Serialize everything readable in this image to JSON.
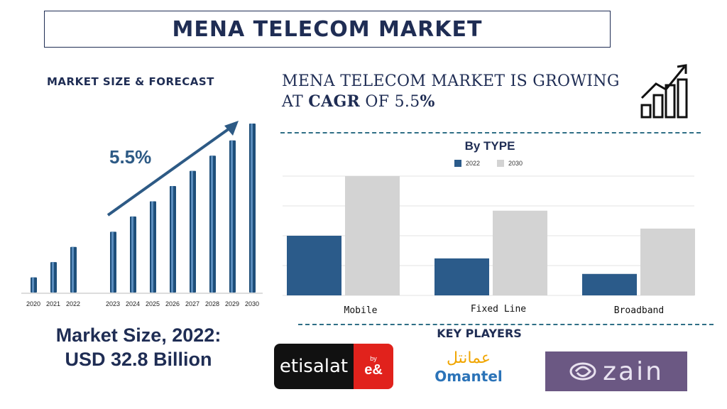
{
  "title": "MENA TELECOM MARKET",
  "forecast_heading": "MARKET SIZE & FORECAST",
  "growth": {
    "prefix": "MENA TELECOM MARKET IS GROWING AT",
    "cagr_word": "CAGR",
    "of_word": "OF",
    "rate": "5.5",
    "pct": "%"
  },
  "forecast_cagr_label": "5.5%",
  "market_size": {
    "line1": "Market Size, 2022:",
    "line2": "USD 32.8 Billion"
  },
  "key_players_heading": "KEY PLAYERS",
  "logos": {
    "etisalat": "etisalat",
    "etisalat_by": "by",
    "etisalat_mark": "e&",
    "omantel_arabic": "عمانتل",
    "omantel": "Omantel",
    "zain": "zain"
  },
  "colors": {
    "navy": "#1f2d54",
    "bar_2022": "#2b5b8a",
    "bar_2030": "#d3d3d3",
    "dash": "#2f6f86",
    "zain_bg": "#6b5883",
    "etisalat_red": "#e1221c"
  },
  "icons": {
    "growth": "growth-bars-icon",
    "arrow": "trend-arrow-icon"
  },
  "chart_data": [
    {
      "type": "bar",
      "title": "",
      "categories": [
        "2020",
        "2021",
        "2022",
        "2023",
        "2024",
        "2025",
        "2026",
        "2027",
        "2028",
        "2029",
        "2030"
      ],
      "values": [
        9,
        18,
        27,
        36,
        45,
        54,
        63,
        72,
        81,
        90,
        100
      ],
      "annotation": "5.5%",
      "grid": false
    },
    {
      "type": "bar",
      "title": "By TYPE",
      "categories": [
        "Mobile",
        "Fixed Line",
        "Broadband"
      ],
      "series": [
        {
          "name": "2022",
          "values": [
            50,
            31,
            18
          ]
        },
        {
          "name": "2030",
          "values": [
            100,
            71,
            56
          ]
        }
      ],
      "ylim": [
        0,
        100
      ],
      "grid": true,
      "legend": "top-center"
    }
  ]
}
